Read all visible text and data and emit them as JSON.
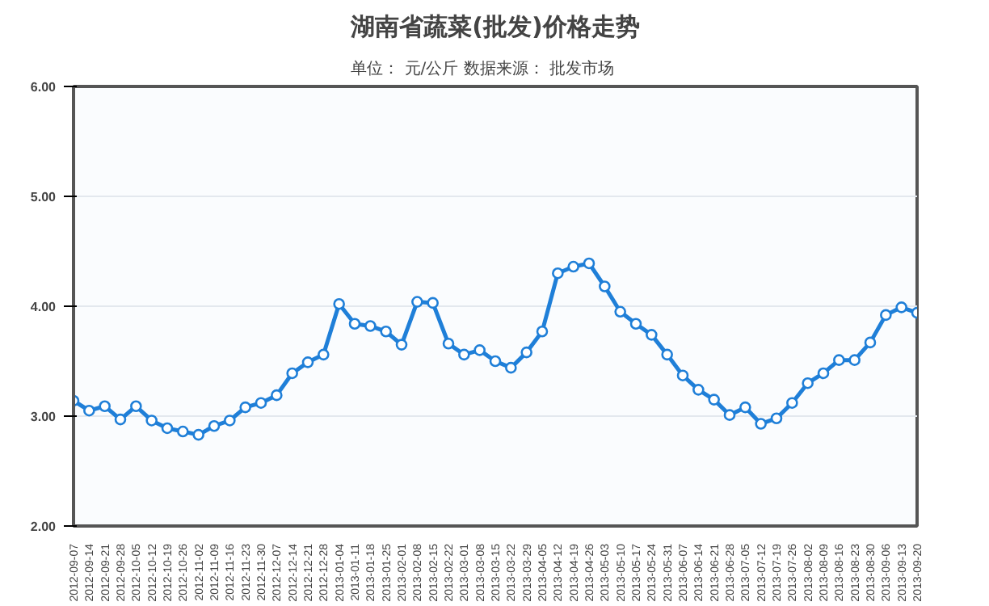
{
  "chart_data": {
    "type": "line",
    "title": "湖南省蔬菜(批发)价格走势",
    "subtitle": "单位： 元/公斤      数据来源： 批发市场",
    "categories": [
      "2012-09-07",
      "2012-09-14",
      "2012-09-21",
      "2012-09-28",
      "2012-10-05",
      "2012-10-12",
      "2012-10-19",
      "2012-10-26",
      "2012-11-02",
      "2012-11-09",
      "2012-11-16",
      "2012-11-23",
      "2012-11-30",
      "2012-12-07",
      "2012-12-14",
      "2012-12-21",
      "2012-12-28",
      "2013-01-04",
      "2013-01-11",
      "2013-01-18",
      "2013-01-25",
      "2013-02-01",
      "2013-02-08",
      "2013-02-15",
      "2013-02-22",
      "2013-03-01",
      "2013-03-08",
      "2013-03-15",
      "2013-03-22",
      "2013-03-29",
      "2013-04-05",
      "2013-04-12",
      "2013-04-19",
      "2013-04-26",
      "2013-05-03",
      "2013-05-10",
      "2013-05-17",
      "2013-05-24",
      "2013-05-31",
      "2013-06-07",
      "2013-06-14",
      "2013-06-21",
      "2013-06-28",
      "2013-07-05",
      "2013-07-12",
      "2013-07-19",
      "2013-07-26",
      "2013-08-02",
      "2013-08-09",
      "2013-08-16",
      "2013-08-23",
      "2013-08-30",
      "2013-09-06",
      "2013-09-13",
      "2013-09-20"
    ],
    "series": [
      {
        "color": "#1f7fd8",
        "values": [
          3.14,
          3.05,
          3.09,
          2.97,
          3.09,
          2.96,
          2.89,
          2.86,
          2.83,
          2.91,
          2.96,
          3.08,
          3.12,
          3.19,
          3.39,
          3.49,
          3.56,
          4.02,
          3.84,
          3.82,
          3.77,
          3.65,
          4.04,
          4.03,
          3.66,
          3.56,
          3.6,
          3.5,
          3.44,
          3.58,
          3.77,
          4.3,
          4.36,
          4.39,
          4.18,
          3.95,
          3.84,
          3.74,
          3.56,
          3.37,
          3.24,
          3.15,
          3.01,
          3.08,
          2.93,
          2.98,
          3.12,
          3.3,
          3.39,
          3.51,
          3.51,
          3.67,
          3.92,
          3.99,
          3.94
        ]
      }
    ],
    "ylim": [
      2,
      6
    ],
    "yticks": [
      {
        "value": 2,
        "label": "2.00"
      },
      {
        "value": 3,
        "label": "3.00"
      },
      {
        "value": 4,
        "label": "4.00"
      },
      {
        "value": 5,
        "label": "5.00"
      },
      {
        "value": 6,
        "label": "6.00"
      }
    ],
    "grid": "y",
    "marker": "circle",
    "line_style": "solid"
  }
}
